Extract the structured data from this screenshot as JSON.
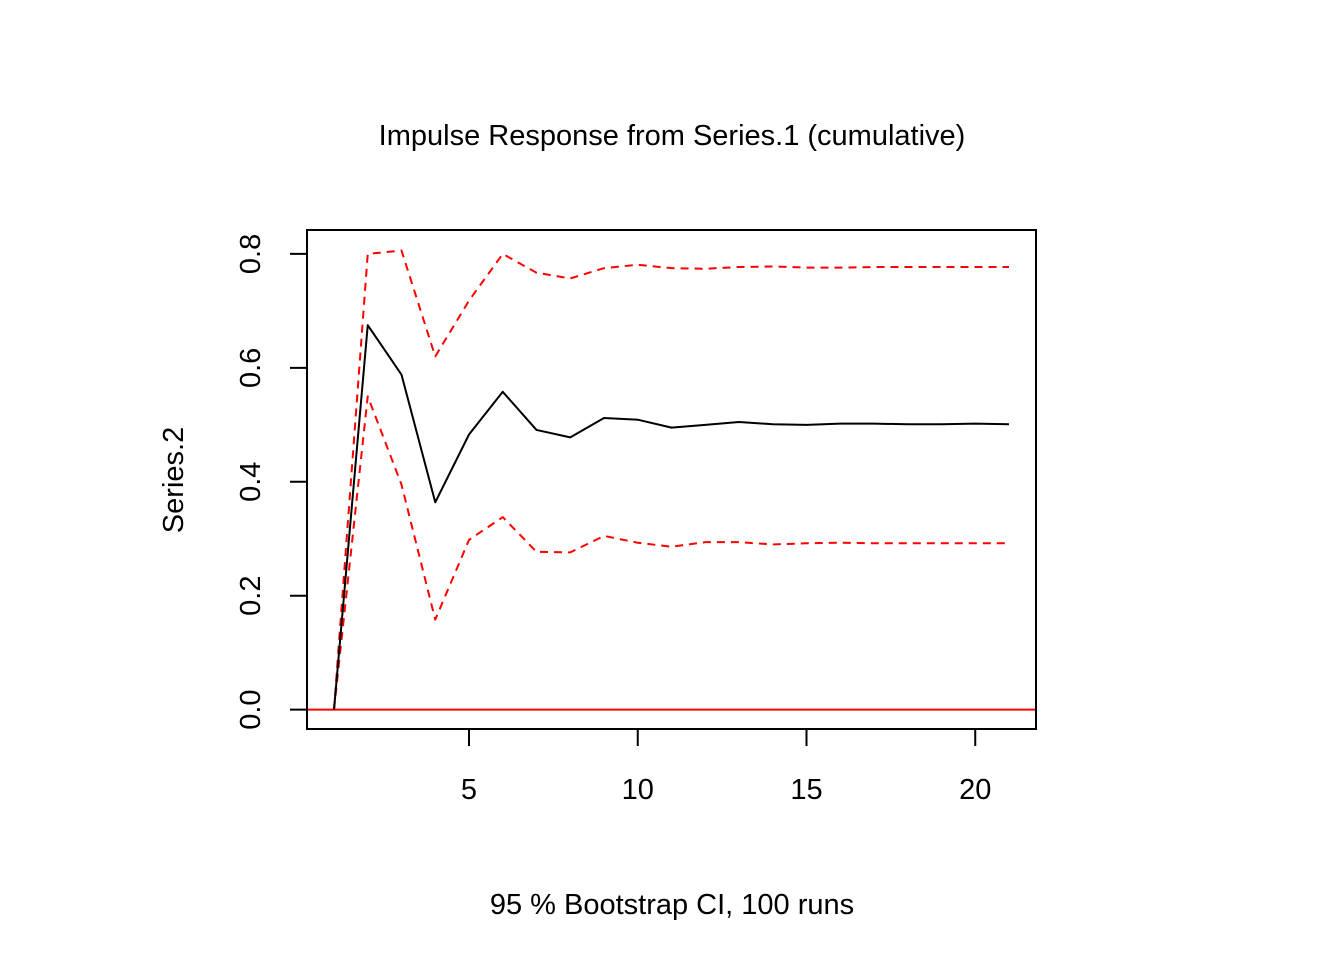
{
  "chart_data": {
    "type": "line",
    "title": "Impulse Response from Series.1 (cumulative)",
    "xlabel": "95 % Bootstrap CI,  100 runs",
    "ylabel": "Series.2",
    "xlim": [
      0.2,
      21.8
    ],
    "ylim": [
      -0.034,
      0.842
    ],
    "x_ticks": [
      5,
      10,
      15,
      20
    ],
    "y_ticks": [
      0.0,
      0.2,
      0.4,
      0.6,
      0.8
    ],
    "x_tick_labels": [
      "5",
      "10",
      "15",
      "20"
    ],
    "y_tick_labels": [
      "0.0",
      "0.2",
      "0.4",
      "0.6",
      "0.8"
    ],
    "grid": false,
    "x": [
      1,
      2,
      3,
      4,
      5,
      6,
      7,
      8,
      9,
      10,
      11,
      12,
      13,
      14,
      15,
      16,
      17,
      18,
      19,
      20,
      21
    ],
    "series": [
      {
        "role": "response",
        "color": "#000000",
        "style": "solid",
        "values": [
          0.0,
          0.675,
          0.588,
          0.364,
          0.483,
          0.558,
          0.491,
          0.478,
          0.512,
          0.509,
          0.495,
          0.5,
          0.505,
          0.501,
          0.5,
          0.502,
          0.502,
          0.501,
          0.501,
          0.502,
          0.501
        ]
      },
      {
        "role": "upper",
        "color": "#ff0000",
        "style": "dashed",
        "values": [
          0.0,
          0.8,
          0.806,
          0.62,
          0.718,
          0.8,
          0.767,
          0.757,
          0.775,
          0.781,
          0.775,
          0.774,
          0.777,
          0.778,
          0.776,
          0.776,
          0.777,
          0.777,
          0.777,
          0.777,
          0.777
        ]
      },
      {
        "role": "lower",
        "color": "#ff0000",
        "style": "dashed",
        "values": [
          0.0,
          0.55,
          0.395,
          0.158,
          0.298,
          0.338,
          0.277,
          0.276,
          0.305,
          0.293,
          0.286,
          0.294,
          0.294,
          0.29,
          0.292,
          0.293,
          0.292,
          0.292,
          0.292,
          0.292,
          0.292
        ]
      }
    ],
    "reference_line": {
      "y": 0.0,
      "color": "#ff0000"
    }
  }
}
